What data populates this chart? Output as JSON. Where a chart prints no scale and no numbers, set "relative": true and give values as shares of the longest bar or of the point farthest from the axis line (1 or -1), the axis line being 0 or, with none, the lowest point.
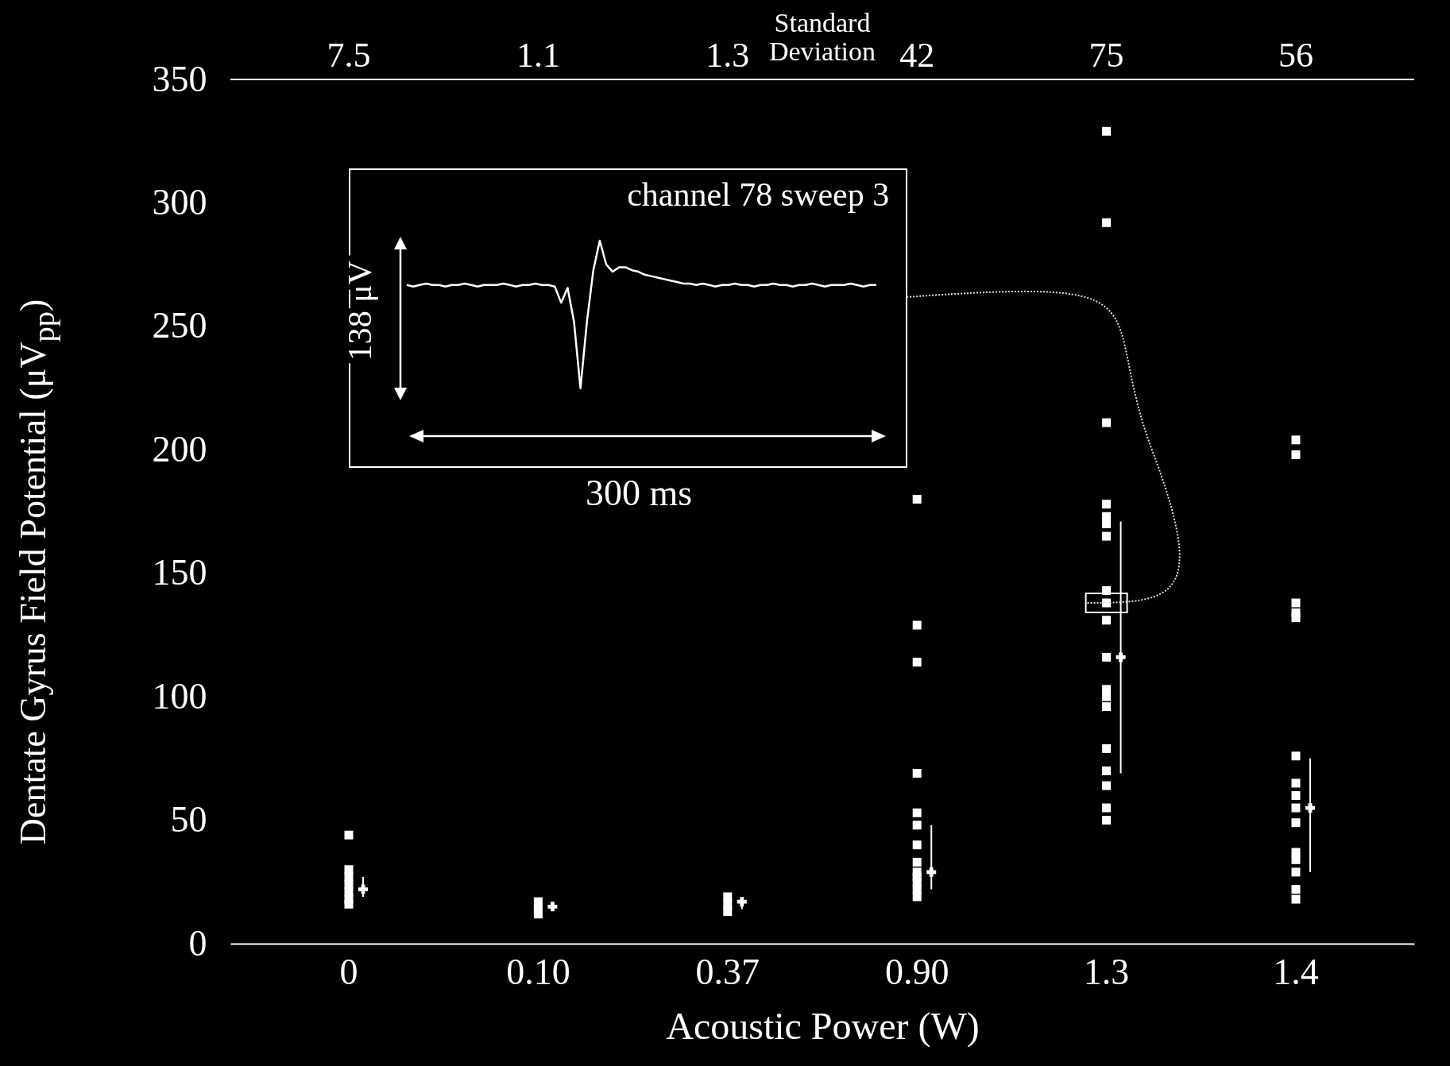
{
  "chart_data": [
    {
      "type": "scatter",
      "xlabel": "Acoustic Power  (W)",
      "ylabel": "Dentate Gyrus Field Potential  (μV$_{pp}$)",
      "categories": [
        "0",
        "0.10",
        "0.37",
        "0.90",
        "1.3",
        "1.4"
      ],
      "ylim": [
        0,
        350
      ],
      "yticks": [
        0,
        50,
        100,
        150,
        200,
        250,
        300,
        350
      ],
      "series": [
        {
          "type": "scatter",
          "marker": "square",
          "color": "#ffffff",
          "x": [
            "0",
            "0",
            "0",
            "0",
            "0",
            "0",
            "0",
            "0.10",
            "0.10",
            "0.10",
            "0.37",
            "0.37",
            "0.37",
            "0.90",
            "0.90",
            "0.90",
            "0.90",
            "0.90",
            "0.90",
            "0.90",
            "0.90",
            "0.90",
            "0.90",
            "0.90",
            "0.90",
            "0.90",
            "1.3",
            "1.3",
            "1.3",
            "1.3",
            "1.3",
            "1.3",
            "1.3",
            "1.3",
            "1.3",
            "1.3",
            "1.3",
            "1.3",
            "1.3",
            "1.3",
            "1.3",
            "1.3",
            "1.3",
            "1.3",
            "1.3",
            "1.4",
            "1.4",
            "1.4",
            "1.4",
            "1.4",
            "1.4",
            "1.4",
            "1.4",
            "1.4",
            "1.4",
            "1.4",
            "1.4",
            "1.4",
            "1.4",
            "1.4"
          ],
          "values": [
            44,
            30,
            27,
            24,
            21,
            18,
            16,
            17,
            14,
            12,
            19,
            16,
            13,
            180,
            129,
            114,
            69,
            53,
            48,
            40,
            33,
            29,
            27,
            25,
            22,
            19,
            329,
            292,
            211,
            178,
            173,
            170,
            165,
            143,
            138,
            131,
            116,
            103,
            100,
            96,
            79,
            70,
            64,
            55,
            50,
            204,
            198,
            138,
            134,
            132,
            76,
            65,
            60,
            55,
            49,
            37,
            34,
            29,
            22,
            18
          ]
        },
        {
          "type": "scatter",
          "marker": "cross",
          "color": "#ffffff",
          "x": [
            "0",
            "0.10",
            "0.37",
            "0.90",
            "1.3",
            "1.4"
          ],
          "values": [
            22,
            15,
            17,
            29,
            116,
            55
          ],
          "errors": [
            [
              19,
              27
            ],
            [
              15,
              17
            ],
            [
              14,
              17
            ],
            [
              22,
              48
            ],
            [
              69,
              171
            ],
            [
              29,
              75
            ]
          ]
        }
      ],
      "annotations": [
        "Standard Deviation",
        "7.5",
        "1.1",
        "1.3",
        "42",
        "75",
        "56"
      ]
    },
    {
      "type": "line",
      "relative": true,
      "title": "channel 78 sweep 3",
      "categories": [
        null,
        null,
        null,
        null,
        null,
        null,
        null,
        null,
        null,
        null,
        null,
        null,
        null,
        null,
        null,
        null,
        null,
        null,
        null,
        null,
        null,
        null,
        null,
        null,
        null,
        null,
        null,
        null,
        null,
        null,
        null,
        null,
        null,
        null,
        null,
        null,
        null,
        null,
        null,
        null,
        null,
        null,
        null,
        null,
        null,
        null,
        null,
        null,
        null,
        null,
        null,
        null,
        null,
        null,
        null,
        null,
        null,
        null,
        null,
        null,
        null,
        null,
        null,
        null,
        null,
        null,
        null,
        null,
        null,
        null,
        null,
        null,
        null,
        null
      ],
      "series": [
        {
          "color": "#ffffff",
          "values": [
            0.7,
            0.69,
            0.7,
            0.71,
            0.7,
            0.7,
            0.69,
            0.7,
            0.7,
            0.71,
            0.7,
            0.69,
            0.7,
            0.7,
            0.7,
            0.71,
            0.7,
            0.69,
            0.7,
            0.7,
            0.71,
            0.7,
            0.7,
            0.69,
            0.58,
            0.68,
            0.45,
            0,
            0.45,
            0.8,
            1,
            0.84,
            0.79,
            0.82,
            0.82,
            0.8,
            0.79,
            0.77,
            0.76,
            0.75,
            0.74,
            0.73,
            0.72,
            0.71,
            0.71,
            0.7,
            0.71,
            0.7,
            0.69,
            0.7,
            0.7,
            0.71,
            0.7,
            0.7,
            0.69,
            0.7,
            0.7,
            0.71,
            0.7,
            0.7,
            0.69,
            0.7,
            0.7,
            0.71,
            0.7,
            0.69,
            0.7,
            0.7,
            0.7,
            0.71,
            0.7,
            0.69,
            0.7,
            0.7
          ]
        }
      ],
      "annotations": [
        "138 μV",
        "300 ms"
      ]
    }
  ]
}
